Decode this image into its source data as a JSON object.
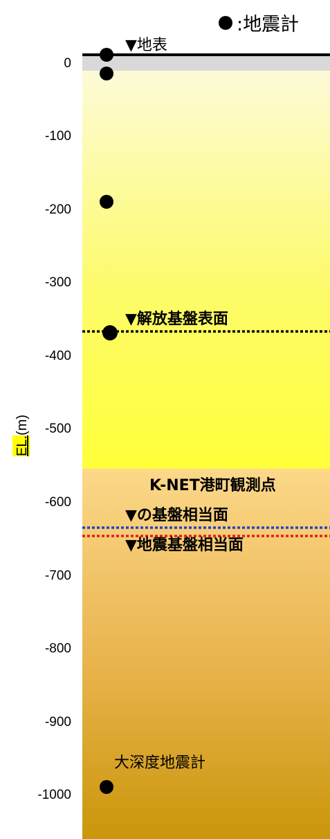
{
  "legend": {
    "symbol": "●",
    "separator": ":",
    "label": "地震計"
  },
  "axis": {
    "ylabel": "EL.(m)",
    "ylabel_highlight": "EL.",
    "ylabel_unit": "(m)",
    "ticks": [
      "0",
      "-100",
      "-200",
      "-300",
      "-400",
      "-500",
      "-600",
      "-700",
      "-800",
      "-900",
      "-1000"
    ]
  },
  "annotations": {
    "surface": "▼地表",
    "bedrock": "▼解放基盤表面",
    "knet_line1": "K-NET港町観測点",
    "knet_line2": "▼の基盤相当面",
    "seismic_base": "▼地震基盤相当面",
    "deep_seismometer": "大深度地震計"
  },
  "seismometer_depths_m": [
    0,
    -10,
    -190,
    -370,
    -995
  ],
  "colors": {
    "surface_line": "#000000",
    "bedrock_line": "#000000",
    "knet_line": "#1f3fd0",
    "seismic_base_line": "#e11d1d",
    "ylabel_highlight": "#ffff00"
  }
}
